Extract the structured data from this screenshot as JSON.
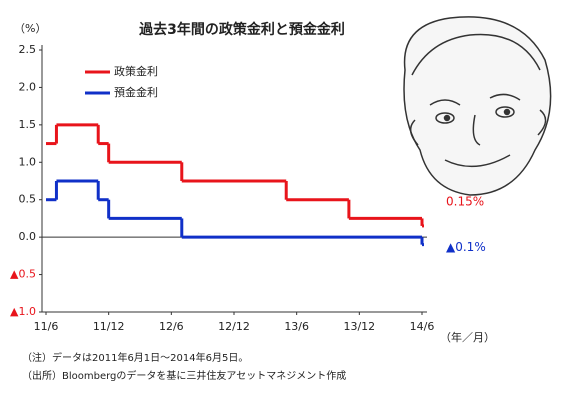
{
  "chart_data": {
    "type": "step-line",
    "title": "過去3年間の政策金利と預金金利",
    "y_unit": "（%）",
    "x_unit": "（年／月）",
    "ylim": [
      -1.0,
      2.5
    ],
    "yticks": [
      2.5,
      {
        "value": 2.0,
        "label": "2.0"
      },
      1.5,
      {
        "value": 1.0,
        "label": "1.0"
      },
      0.5,
      {
        "value": 0.0,
        "label": "0.0"
      },
      {
        "value": -0.5,
        "label": "▲0.5"
      },
      {
        "value": -1.0,
        "label": "▲1.0"
      }
    ],
    "xlim": [
      "11/6",
      "14/6"
    ],
    "xticks": [
      "11/6",
      "11/12",
      "12/6",
      "12/12",
      "13/6",
      "13/12",
      "14/6"
    ],
    "series": [
      {
        "name": "政策金利",
        "color": "#e8141b",
        "x": [
          "11/6",
          "11/7",
          "11/11",
          "11/12",
          "12/7",
          "13/5",
          "13/11",
          "14/6"
        ],
        "values": [
          1.25,
          1.5,
          1.25,
          1.0,
          0.75,
          0.5,
          0.25,
          0.15
        ],
        "value_labels": [
          null,
          null,
          null,
          null,
          null,
          null,
          null,
          "0.15%"
        ]
      },
      {
        "name": "預金金利",
        "color": "#1030c8",
        "x": [
          "11/6",
          "11/7",
          "11/11",
          "11/12",
          "12/7",
          "14/6"
        ],
        "values": [
          0.5,
          0.75,
          0.5,
          0.25,
          0.0,
          -0.1
        ],
        "value_labels": [
          null,
          null,
          null,
          null,
          null,
          "▲0.1%"
        ]
      }
    ],
    "notes": [
      "（注）データは2011年6月1日～2014年6月5日。",
      "（出所）Bloombergのデータを基に三井住友アセットマネジメント作成"
    ]
  }
}
